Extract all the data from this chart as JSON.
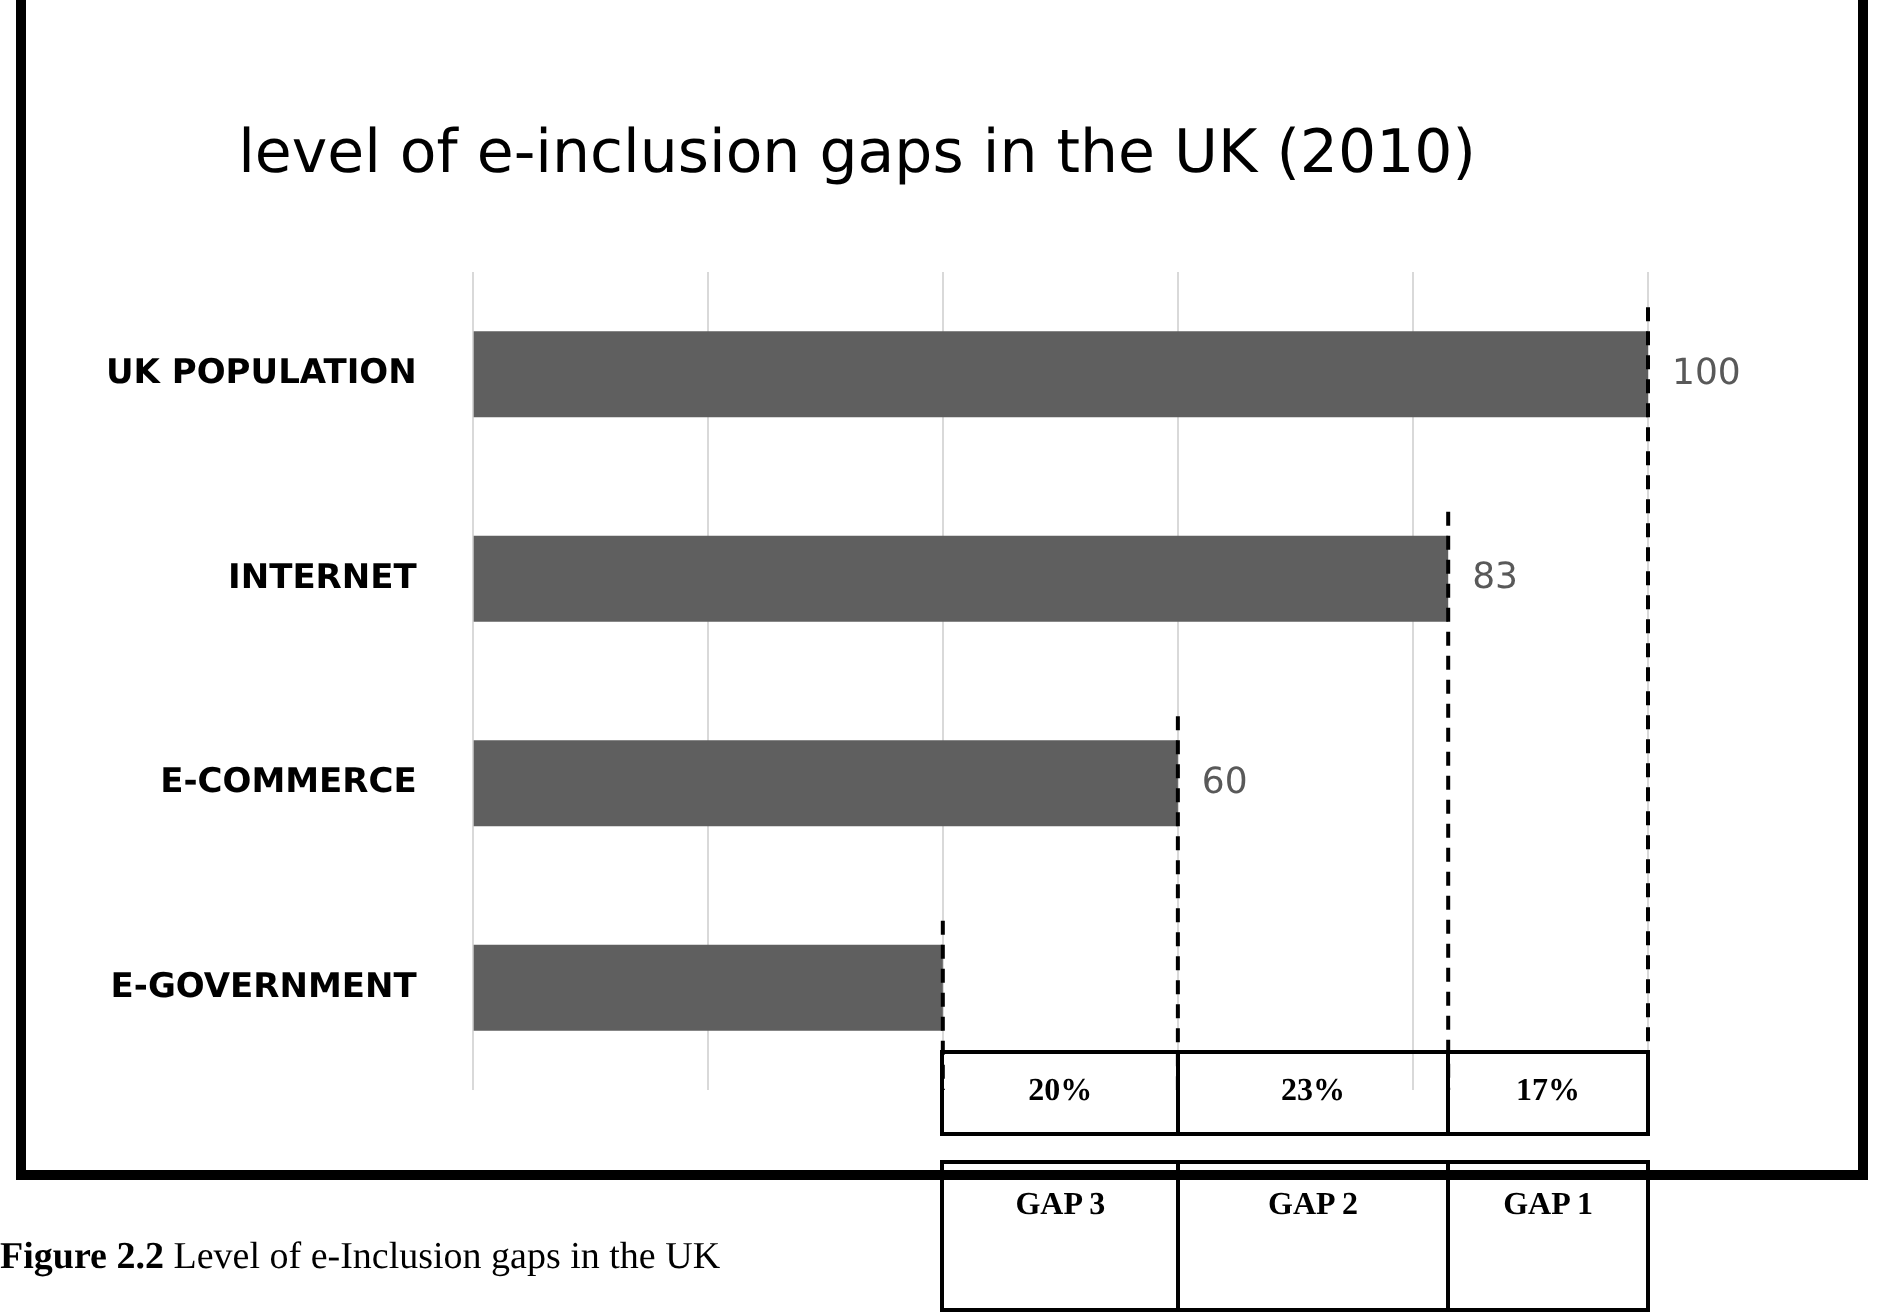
{
  "chart_data": {
    "type": "bar",
    "orientation": "horizontal",
    "title": "level of e-inclusion gaps in the UK (2010)",
    "categories": [
      "UK POPULATION",
      "INTERNET",
      "E-COMMERCE",
      "E-GOVERNMENT"
    ],
    "values": [
      100,
      83,
      60,
      40
    ],
    "color": "#5f5f5f",
    "value_labels": [
      "100",
      "83",
      "60",
      null
    ],
    "xlim": [
      0,
      100
    ],
    "xticks": [
      {
        "value": 0,
        "label": null
      },
      {
        "value": 20,
        "label": null
      },
      {
        "value": 40,
        "label": null
      },
      {
        "value": 60,
        "label": null
      },
      {
        "value": 80,
        "label": null
      },
      {
        "value": 100,
        "label": null
      }
    ],
    "grid": "x",
    "tick_labels": "y",
    "legend": false,
    "ref_lines": [
      {
        "axis": "x",
        "value": 40,
        "line_style": "dashed",
        "color": "#000000"
      },
      {
        "axis": "x",
        "value": 60,
        "line_style": "dashed",
        "color": "#000000"
      },
      {
        "axis": "x",
        "value": 83,
        "line_style": "dashed",
        "color": "#000000"
      },
      {
        "axis": "x",
        "value": 100,
        "line_style": "dashed",
        "color": "#000000"
      }
    ],
    "annotations": [
      "20%",
      "23%",
      "17%",
      "GAP 3",
      "GAP 2",
      "GAP 1",
      "Figure 2.2 Level of e-Inclusion gaps in the UK"
    ]
  }
}
